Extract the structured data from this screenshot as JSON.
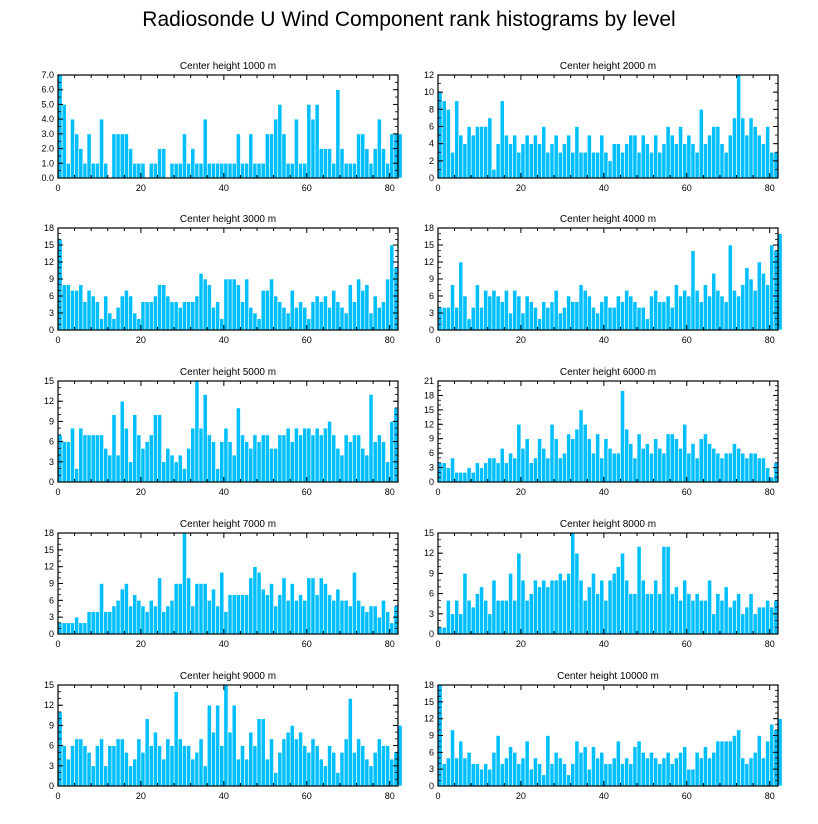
{
  "figure": {
    "title": "Radiosonde U Wind Component rank histograms by level"
  },
  "colors": {
    "bar_fill": "#00bfff",
    "bar_edge": "#ffffff",
    "axis": "#000000"
  },
  "chart_data": [
    {
      "type": "bar",
      "title": "Center height 1000 m",
      "xlim": [
        0,
        82
      ],
      "ylim": [
        0,
        7
      ],
      "xticks": [
        "0",
        "20",
        "40",
        "60",
        "80"
      ],
      "yticks": [
        "0.0",
        "1.0",
        "2.0",
        "3.0",
        "4.0",
        "5.0",
        "6.0",
        "7.0"
      ],
      "values": [
        7,
        5,
        1,
        4,
        3,
        2,
        1,
        3,
        1,
        1,
        4,
        1,
        0,
        3,
        3,
        3,
        3,
        2,
        1,
        1,
        1,
        0,
        1,
        1,
        2,
        2,
        0,
        1,
        1,
        1,
        3,
        1,
        2,
        1,
        1,
        4,
        1,
        1,
        1,
        1,
        1,
        1,
        1,
        3,
        1,
        1,
        3,
        1,
        1,
        1,
        3,
        3,
        4,
        5,
        3,
        1,
        1,
        4,
        1,
        1,
        5,
        4,
        5,
        2,
        2,
        2,
        1,
        6,
        2,
        1,
        1,
        1,
        3,
        3,
        2,
        1,
        2,
        4,
        2,
        1,
        3,
        3,
        3
      ]
    },
    {
      "type": "bar",
      "title": "Center height 2000 m",
      "xlim": [
        0,
        82
      ],
      "ylim": [
        0,
        12
      ],
      "xticks": [
        "0",
        "20",
        "40",
        "60",
        "80"
      ],
      "yticks": [
        "0",
        "2",
        "4",
        "6",
        "8",
        "10",
        "12"
      ],
      "values": [
        10,
        9,
        8,
        3,
        9,
        5,
        4,
        6,
        5,
        6,
        6,
        6,
        7,
        1,
        4,
        9,
        5,
        4,
        5,
        3,
        4,
        5,
        4,
        5,
        4,
        6,
        3,
        4,
        5,
        3,
        4,
        5,
        3,
        6,
        3,
        3,
        5,
        3,
        3,
        5,
        3,
        2,
        4,
        4,
        3,
        4,
        5,
        5,
        3,
        5,
        4,
        3,
        5,
        3,
        4,
        6,
        5,
        4,
        6,
        4,
        5,
        4,
        3,
        8,
        4,
        5,
        6,
        6,
        4,
        3,
        5,
        7,
        12,
        7,
        5,
        7,
        6,
        5,
        4,
        6,
        3,
        3
      ]
    },
    {
      "type": "bar",
      "title": "Center height 3000 m",
      "xlim": [
        0,
        82
      ],
      "ylim": [
        0,
        18
      ],
      "xticks": [
        "0",
        "20",
        "40",
        "60",
        "80"
      ],
      "yticks": [
        "0",
        "3",
        "6",
        "9",
        "12",
        "15",
        "18"
      ],
      "values": [
        16,
        8,
        8,
        7,
        7,
        8,
        5,
        7,
        6,
        5,
        2,
        6,
        3,
        2,
        4,
        6,
        7,
        6,
        3,
        2,
        5,
        5,
        5,
        6,
        8,
        8,
        6,
        5,
        5,
        4,
        5,
        5,
        5,
        6,
        10,
        9,
        8,
        4,
        5,
        2,
        9,
        9,
        9,
        8,
        5,
        9,
        4,
        3,
        2,
        7,
        7,
        9,
        6,
        5,
        4,
        3,
        7,
        4,
        5,
        4,
        2,
        5,
        6,
        5,
        6,
        4,
        7,
        5,
        4,
        3,
        8,
        5,
        9,
        7,
        8,
        3,
        6,
        4,
        5,
        9,
        15,
        11
      ]
    },
    {
      "type": "bar",
      "title": "Center height 4000 m",
      "xlim": [
        0,
        82
      ],
      "ylim": [
        0,
        18
      ],
      "xticks": [
        "0",
        "20",
        "40",
        "60",
        "80"
      ],
      "yticks": [
        "0",
        "3",
        "6",
        "9",
        "12",
        "15",
        "18"
      ],
      "values": [
        4,
        4,
        4,
        8,
        4,
        12,
        6,
        2,
        4,
        8,
        4,
        7,
        6,
        7,
        6,
        5,
        7,
        3,
        7,
        6,
        3,
        6,
        5,
        4,
        2,
        5,
        4,
        5,
        7,
        3,
        4,
        6,
        5,
        5,
        8,
        7,
        6,
        4,
        3,
        5,
        6,
        4,
        4,
        6,
        5,
        7,
        6,
        5,
        4,
        4,
        2,
        6,
        7,
        5,
        5,
        6,
        4,
        8,
        6,
        7,
        6,
        14,
        7,
        5,
        8,
        6,
        10,
        7,
        6,
        5,
        15,
        7,
        6,
        8,
        11,
        9,
        7,
        12,
        10,
        8,
        15,
        14,
        17
      ]
    },
    {
      "type": "bar",
      "title": "Center height 5000 m",
      "xlim": [
        0,
        82
      ],
      "ylim": [
        0,
        15
      ],
      "xticks": [
        "0",
        "20",
        "40",
        "60",
        "80"
      ],
      "yticks": [
        "0",
        "3",
        "6",
        "9",
        "12",
        "15"
      ],
      "values": [
        7,
        6,
        6,
        8,
        2,
        8,
        7,
        7,
        7,
        7,
        7,
        5,
        4,
        10,
        4,
        12,
        8,
        3,
        10,
        7,
        5,
        6,
        7,
        10,
        10,
        3,
        5,
        4,
        3,
        4,
        2,
        5,
        8,
        15,
        8,
        13,
        7,
        6,
        2,
        6,
        8,
        6,
        4,
        11,
        7,
        6,
        5,
        7,
        6,
        7,
        7,
        5,
        5,
        7,
        7,
        8,
        6,
        8,
        7,
        8,
        8,
        7,
        8,
        7,
        8,
        9,
        7,
        5,
        4,
        7,
        6,
        7,
        7,
        5,
        4,
        13,
        6,
        7,
        6,
        3,
        9,
        11
      ]
    },
    {
      "type": "bar",
      "title": "Center height 6000 m",
      "xlim": [
        0,
        82
      ],
      "ylim": [
        0,
        21
      ],
      "xticks": [
        "0",
        "20",
        "40",
        "60",
        "80"
      ],
      "yticks": [
        "0",
        "3",
        "6",
        "9",
        "12",
        "15",
        "18",
        "21"
      ],
      "values": [
        4,
        4,
        3,
        5,
        2,
        2,
        2,
        3,
        2,
        4,
        3,
        4,
        5,
        5,
        4,
        7,
        4,
        6,
        5,
        12,
        7,
        9,
        4,
        5,
        9,
        7,
        5,
        12,
        9,
        5,
        6,
        10,
        9,
        11,
        15,
        12,
        9,
        6,
        10,
        5,
        9,
        7,
        6,
        6,
        19,
        11,
        8,
        5,
        10,
        7,
        8,
        6,
        9,
        7,
        6,
        10,
        10,
        9,
        7,
        12,
        6,
        8,
        5,
        9,
        10,
        8,
        7,
        6,
        5,
        6,
        6,
        8,
        7,
        6,
        5,
        6,
        6,
        5,
        5,
        3,
        1,
        4
      ]
    },
    {
      "type": "bar",
      "title": "Center height 7000 m",
      "xlim": [
        0,
        82
      ],
      "ylim": [
        0,
        18
      ],
      "xticks": [
        "0",
        "20",
        "40",
        "60",
        "80"
      ],
      "yticks": [
        "0",
        "3",
        "6",
        "9",
        "12",
        "15",
        "18"
      ],
      "values": [
        2,
        2,
        2,
        2,
        3,
        2,
        2,
        4,
        4,
        4,
        9,
        4,
        4,
        5,
        6,
        8,
        9,
        5,
        7,
        6,
        5,
        4,
        6,
        5,
        10,
        4,
        5,
        6,
        9,
        9,
        18,
        10,
        5,
        9,
        9,
        9,
        6,
        8,
        5,
        11,
        4,
        7,
        7,
        7,
        7,
        7,
        10,
        12,
        11,
        8,
        7,
        9,
        5,
        7,
        10,
        6,
        9,
        6,
        7,
        6,
        10,
        10,
        7,
        10,
        9,
        7,
        6,
        8,
        6,
        6,
        5,
        11,
        6,
        5,
        4,
        5,
        5,
        3,
        6,
        4,
        2,
        5
      ]
    },
    {
      "type": "bar",
      "title": "Center height 8000 m",
      "xlim": [
        0,
        82
      ],
      "ylim": [
        0,
        15
      ],
      "xticks": [
        "0",
        "20",
        "40",
        "60",
        "80"
      ],
      "yticks": [
        "0",
        "3",
        "6",
        "9",
        "12",
        "15"
      ],
      "values": [
        1,
        1,
        5,
        3,
        5,
        3,
        9,
        5,
        4,
        6,
        7,
        5,
        3,
        8,
        5,
        5,
        5,
        9,
        5,
        12,
        8,
        5,
        6,
        8,
        7,
        8,
        7,
        8,
        8,
        9,
        8,
        9,
        15,
        12,
        8,
        5,
        7,
        9,
        6,
        8,
        5,
        8,
        9,
        10,
        12,
        8,
        6,
        6,
        13,
        8,
        6,
        6,
        8,
        6,
        13,
        13,
        6,
        7,
        5,
        8,
        6,
        5,
        6,
        5,
        5,
        8,
        3,
        6,
        5,
        7,
        4,
        5,
        6,
        3,
        4,
        6,
        3,
        4,
        4,
        5,
        4,
        5
      ]
    },
    {
      "type": "bar",
      "title": "Center height 9000 m",
      "xlim": [
        0,
        82
      ],
      "ylim": [
        0,
        15
      ],
      "xticks": [
        "0",
        "20",
        "40",
        "60",
        "80"
      ],
      "yticks": [
        "0",
        "3",
        "6",
        "9",
        "12",
        "15"
      ],
      "values": [
        11,
        6,
        4,
        6,
        7,
        7,
        6,
        5,
        3,
        6,
        7,
        3,
        6,
        6,
        7,
        7,
        5,
        3,
        4,
        7,
        5,
        10,
        6,
        8,
        6,
        4,
        7,
        6,
        14,
        7,
        6,
        6,
        4,
        5,
        7,
        3,
        12,
        8,
        12,
        6,
        15,
        8,
        12,
        4,
        6,
        4,
        8,
        6,
        10,
        10,
        4,
        7,
        2,
        5,
        7,
        8,
        9,
        7,
        8,
        6,
        5,
        7,
        6,
        4,
        3,
        6,
        5,
        2,
        5,
        7,
        13,
        5,
        7,
        6,
        4,
        3,
        5,
        7,
        6,
        6,
        4,
        5,
        9
      ]
    },
    {
      "type": "bar",
      "title": "Center height 10000 m",
      "xlim": [
        0,
        82
      ],
      "ylim": [
        0,
        18
      ],
      "xticks": [
        "0",
        "20",
        "40",
        "60",
        "80"
      ],
      "yticks": [
        "0",
        "3",
        "6",
        "9",
        "12",
        "15",
        "18"
      ],
      "values": [
        18,
        4,
        5,
        10,
        5,
        8,
        5,
        6,
        4,
        4,
        3,
        4,
        3,
        6,
        9,
        4,
        5,
        7,
        6,
        4,
        5,
        8,
        3,
        5,
        4,
        2,
        9,
        4,
        6,
        5,
        4,
        2,
        4,
        8,
        6,
        7,
        3,
        7,
        5,
        6,
        4,
        4,
        5,
        8,
        4,
        5,
        4,
        7,
        8,
        6,
        5,
        6,
        5,
        4,
        5,
        6,
        4,
        5,
        6,
        7,
        3,
        3,
        6,
        5,
        7,
        5,
        6,
        8,
        8,
        8,
        8,
        9,
        10,
        5,
        4,
        5,
        6,
        9,
        5,
        8,
        11,
        10,
        12
      ]
    }
  ]
}
